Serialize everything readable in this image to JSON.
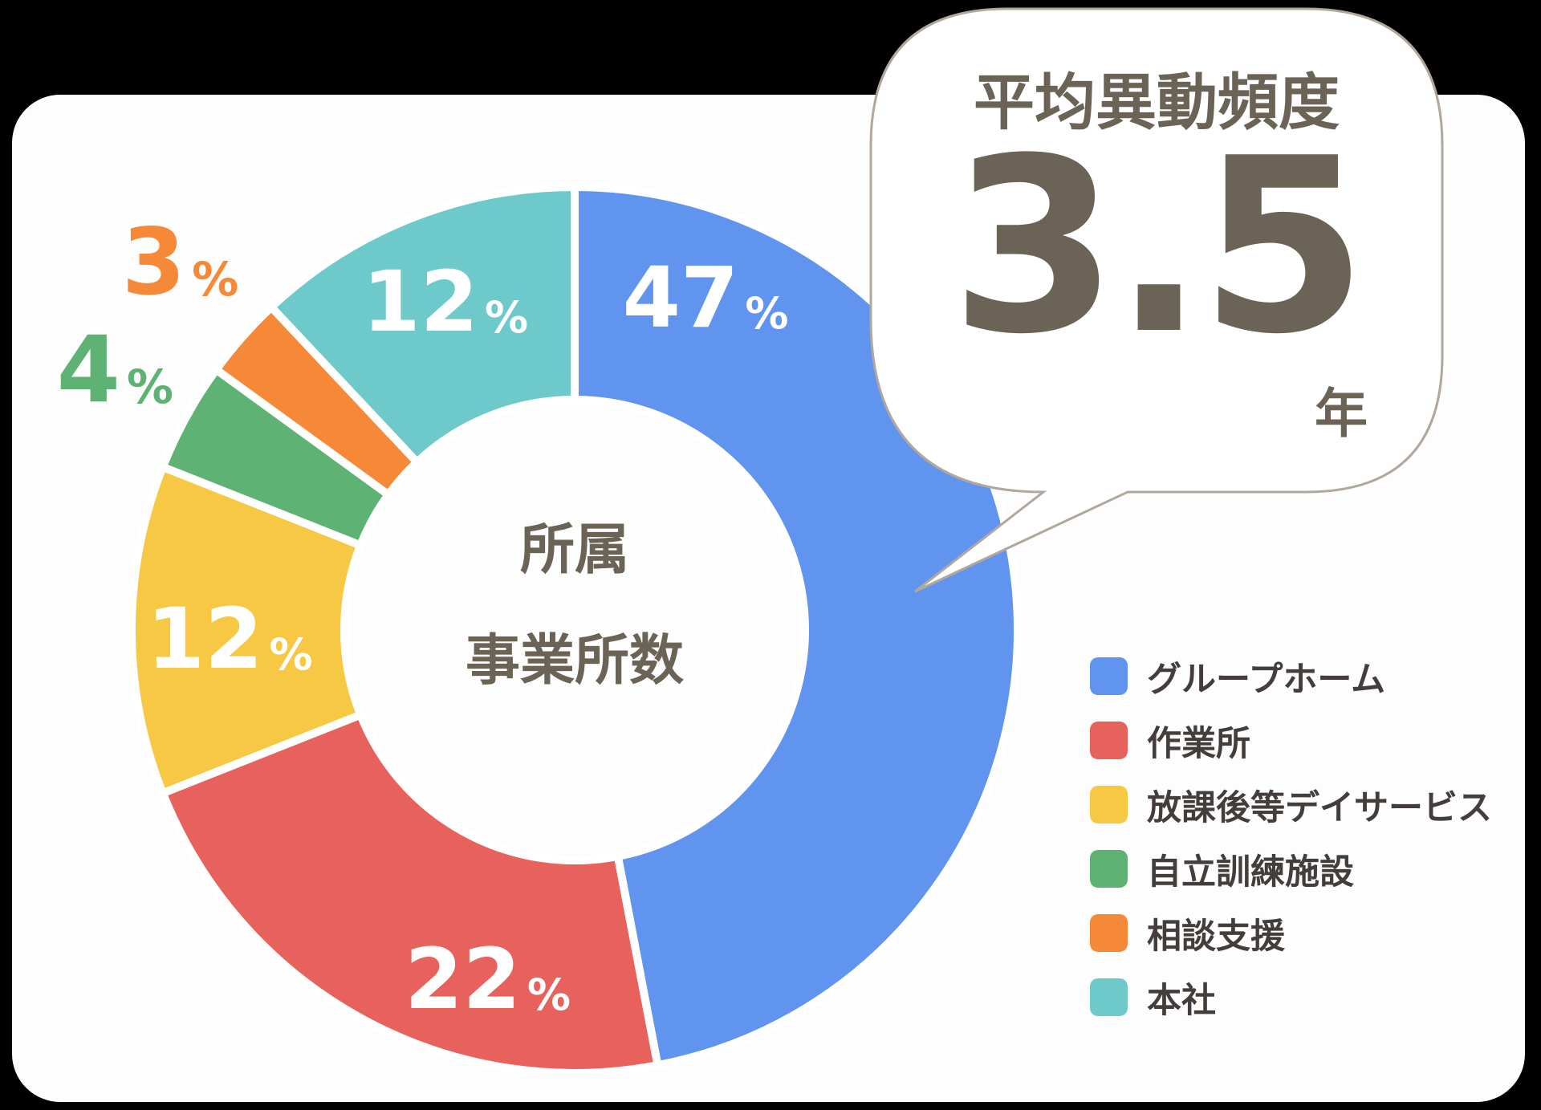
{
  "bubble": {
    "title": "平均異動頻度",
    "value": "3.5",
    "unit": "年"
  },
  "donut": {
    "center_label_line1": "所属",
    "center_label_line2": "事業所数"
  },
  "percent_symbol": "%",
  "chart_data": {
    "type": "pie",
    "subtype": "donut",
    "title": "所属事業所数",
    "center_label": [
      "所属",
      "事業所数"
    ],
    "unit": "%",
    "start_angle_deg_from_top": 0,
    "direction": "clockwise",
    "segments": [
      {
        "label": "グループホーム",
        "value": 47,
        "color": "#6094ee"
      },
      {
        "label": "作業所",
        "value": 22,
        "color": "#e7625c"
      },
      {
        "label": "放課後等デイサービス",
        "value": 12,
        "color": "#f6c844"
      },
      {
        "label": "自立訓練施設",
        "value": 4,
        "color": "#5db274"
      },
      {
        "label": "相談支援",
        "value": 3,
        "color": "#f68937"
      },
      {
        "label": "本社",
        "value": 12,
        "color": "#6ec9cb"
      }
    ],
    "legend_position": "right",
    "annotation": {
      "label": "平均異動頻度",
      "value": 3.5,
      "unit": "年"
    }
  }
}
